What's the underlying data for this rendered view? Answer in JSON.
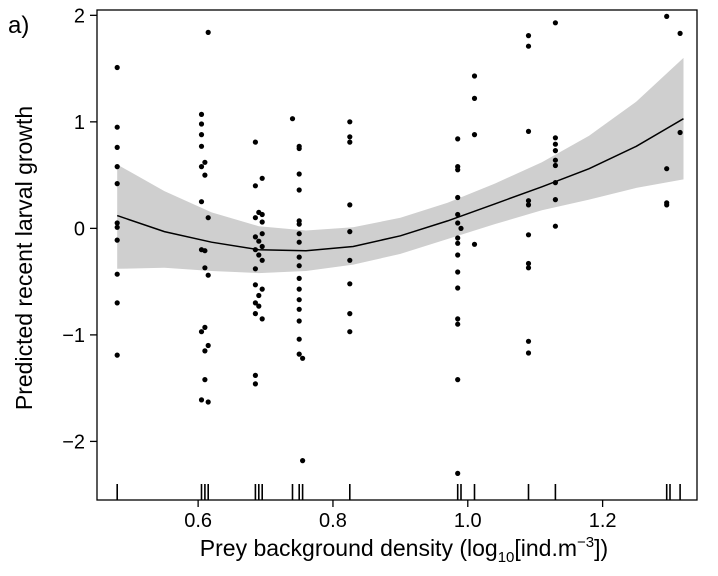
{
  "chart_data": {
    "type": "scatter",
    "panel_label": "a)",
    "xlabel_prefix": "Prey background density (log",
    "xlabel_sub": "10",
    "xlabel_mid": "[ind.m",
    "xlabel_sup": "−3",
    "xlabel_suffix": "])",
    "ylabel": "Predicted recent larval growth",
    "xlim": [
      0.45,
      1.34
    ],
    "ylim": [
      -2.55,
      2.05
    ],
    "x_ticks": [
      0.6,
      0.8,
      1.0,
      1.2
    ],
    "x_tick_labels": [
      "0.6",
      "0.8",
      "1.0",
      "1.2"
    ],
    "y_ticks": [
      -2,
      -1,
      0,
      1,
      2
    ],
    "y_tick_labels": [
      "−2",
      "−1",
      "0",
      "1",
      "2"
    ],
    "grid": false,
    "rug_x": [
      0.48,
      0.605,
      0.61,
      0.615,
      0.685,
      0.69,
      0.695,
      0.74,
      0.75,
      0.755,
      0.825,
      0.985,
      0.99,
      1.01,
      1.09,
      1.13,
      1.295,
      1.3,
      1.315
    ],
    "fit_line": {
      "x": [
        0.48,
        0.55,
        0.62,
        0.69,
        0.76,
        0.83,
        0.9,
        0.97,
        1.04,
        1.11,
        1.18,
        1.25,
        1.32
      ],
      "y": [
        0.12,
        -0.03,
        -0.13,
        -0.2,
        -0.21,
        -0.17,
        -0.07,
        0.07,
        0.23,
        0.39,
        0.56,
        0.77,
        1.03
      ]
    },
    "confidence_band": {
      "x": [
        0.48,
        0.55,
        0.62,
        0.69,
        0.76,
        0.83,
        0.9,
        0.97,
        1.04,
        1.11,
        1.18,
        1.25,
        1.32
      ],
      "upper": [
        0.6,
        0.35,
        0.15,
        0.02,
        -0.02,
        0.01,
        0.1,
        0.24,
        0.42,
        0.62,
        0.87,
        1.19,
        1.6
      ],
      "lower": [
        -0.38,
        -0.37,
        -0.4,
        -0.42,
        -0.4,
        -0.34,
        -0.24,
        -0.1,
        0.04,
        0.17,
        0.27,
        0.38,
        0.46
      ]
    },
    "points": [
      {
        "x": 0.48,
        "y": 1.51
      },
      {
        "x": 0.48,
        "y": 0.95
      },
      {
        "x": 0.48,
        "y": 0.76
      },
      {
        "x": 0.48,
        "y": 0.58
      },
      {
        "x": 0.48,
        "y": 0.42
      },
      {
        "x": 0.48,
        "y": 0.05
      },
      {
        "x": 0.48,
        "y": 0.01
      },
      {
        "x": 0.48,
        "y": -0.11
      },
      {
        "x": 0.48,
        "y": -0.43
      },
      {
        "x": 0.48,
        "y": -0.7
      },
      {
        "x": 0.48,
        "y": -1.19
      },
      {
        "x": 0.605,
        "y": 1.07
      },
      {
        "x": 0.605,
        "y": 0.98
      },
      {
        "x": 0.605,
        "y": 0.88
      },
      {
        "x": 0.605,
        "y": 0.77
      },
      {
        "x": 0.605,
        "y": 0.58
      },
      {
        "x": 0.605,
        "y": 0.25
      },
      {
        "x": 0.605,
        "y": -0.2
      },
      {
        "x": 0.605,
        "y": -0.97
      },
      {
        "x": 0.605,
        "y": -1.61
      },
      {
        "x": 0.61,
        "y": 0.62
      },
      {
        "x": 0.61,
        "y": 0.5
      },
      {
        "x": 0.61,
        "y": -0.21
      },
      {
        "x": 0.61,
        "y": -0.37
      },
      {
        "x": 0.61,
        "y": -0.93
      },
      {
        "x": 0.61,
        "y": -1.15
      },
      {
        "x": 0.61,
        "y": -1.42
      },
      {
        "x": 0.615,
        "y": 1.84
      },
      {
        "x": 0.615,
        "y": 0.1
      },
      {
        "x": 0.615,
        "y": -0.44
      },
      {
        "x": 0.615,
        "y": -1.1
      },
      {
        "x": 0.615,
        "y": -1.63
      },
      {
        "x": 0.685,
        "y": 0.81
      },
      {
        "x": 0.685,
        "y": 0.4
      },
      {
        "x": 0.685,
        "y": 0.1
      },
      {
        "x": 0.685,
        "y": -0.08
      },
      {
        "x": 0.685,
        "y": -0.2
      },
      {
        "x": 0.685,
        "y": -0.38
      },
      {
        "x": 0.685,
        "y": -0.53
      },
      {
        "x": 0.685,
        "y": -0.7
      },
      {
        "x": 0.685,
        "y": -0.8
      },
      {
        "x": 0.685,
        "y": -1.38
      },
      {
        "x": 0.685,
        "y": -1.46
      },
      {
        "x": 0.69,
        "y": 0.15
      },
      {
        "x": 0.69,
        "y": -0.12
      },
      {
        "x": 0.69,
        "y": -0.25
      },
      {
        "x": 0.69,
        "y": -0.63
      },
      {
        "x": 0.69,
        "y": -0.73
      },
      {
        "x": 0.695,
        "y": 0.47
      },
      {
        "x": 0.695,
        "y": 0.13
      },
      {
        "x": 0.695,
        "y": 0.06
      },
      {
        "x": 0.695,
        "y": -0.05
      },
      {
        "x": 0.695,
        "y": -0.17
      },
      {
        "x": 0.695,
        "y": -0.3
      },
      {
        "x": 0.695,
        "y": -0.57
      },
      {
        "x": 0.695,
        "y": -0.85
      },
      {
        "x": 0.74,
        "y": 1.03
      },
      {
        "x": 0.75,
        "y": 0.77
      },
      {
        "x": 0.75,
        "y": 0.75
      },
      {
        "x": 0.75,
        "y": 0.51
      },
      {
        "x": 0.75,
        "y": 0.36
      },
      {
        "x": 0.75,
        "y": 0.07
      },
      {
        "x": 0.75,
        "y": 0.04
      },
      {
        "x": 0.75,
        "y": -0.05
      },
      {
        "x": 0.75,
        "y": -0.13
      },
      {
        "x": 0.75,
        "y": -0.27
      },
      {
        "x": 0.75,
        "y": -0.35
      },
      {
        "x": 0.75,
        "y": -0.47
      },
      {
        "x": 0.75,
        "y": -0.57
      },
      {
        "x": 0.75,
        "y": -0.67
      },
      {
        "x": 0.75,
        "y": -0.76
      },
      {
        "x": 0.75,
        "y": -0.87
      },
      {
        "x": 0.75,
        "y": -1.04
      },
      {
        "x": 0.75,
        "y": -1.18
      },
      {
        "x": 0.755,
        "y": -1.22
      },
      {
        "x": 0.755,
        "y": -2.18
      },
      {
        "x": 0.825,
        "y": 1.0
      },
      {
        "x": 0.825,
        "y": 0.86
      },
      {
        "x": 0.825,
        "y": 0.81
      },
      {
        "x": 0.825,
        "y": 0.22
      },
      {
        "x": 0.825,
        "y": -0.03
      },
      {
        "x": 0.825,
        "y": -0.3
      },
      {
        "x": 0.825,
        "y": -0.52
      },
      {
        "x": 0.825,
        "y": -0.8
      },
      {
        "x": 0.825,
        "y": -0.97
      },
      {
        "x": 0.985,
        "y": 0.84
      },
      {
        "x": 0.985,
        "y": 0.58
      },
      {
        "x": 0.985,
        "y": 0.55
      },
      {
        "x": 0.985,
        "y": 0.29
      },
      {
        "x": 0.985,
        "y": 0.13
      },
      {
        "x": 0.985,
        "y": 0.05
      },
      {
        "x": 0.985,
        "y": -0.09
      },
      {
        "x": 0.985,
        "y": -0.14
      },
      {
        "x": 0.985,
        "y": -0.25
      },
      {
        "x": 0.985,
        "y": -0.41
      },
      {
        "x": 0.985,
        "y": -0.56
      },
      {
        "x": 0.985,
        "y": -0.85
      },
      {
        "x": 0.985,
        "y": -0.9
      },
      {
        "x": 0.985,
        "y": -1.42
      },
      {
        "x": 0.985,
        "y": -2.3
      },
      {
        "x": 0.99,
        "y": 0.0
      },
      {
        "x": 1.01,
        "y": 1.43
      },
      {
        "x": 1.01,
        "y": 1.22
      },
      {
        "x": 1.01,
        "y": 0.88
      },
      {
        "x": 1.01,
        "y": -0.15
      },
      {
        "x": 1.09,
        "y": 1.81
      },
      {
        "x": 1.09,
        "y": 1.71
      },
      {
        "x": 1.09,
        "y": 0.91
      },
      {
        "x": 1.09,
        "y": 0.26
      },
      {
        "x": 1.09,
        "y": 0.22
      },
      {
        "x": 1.09,
        "y": -0.06
      },
      {
        "x": 1.09,
        "y": -0.33
      },
      {
        "x": 1.09,
        "y": -0.37
      },
      {
        "x": 1.09,
        "y": -1.06
      },
      {
        "x": 1.09,
        "y": -1.17
      },
      {
        "x": 1.13,
        "y": 1.93
      },
      {
        "x": 1.13,
        "y": 0.85
      },
      {
        "x": 1.13,
        "y": 0.79
      },
      {
        "x": 1.13,
        "y": 0.73
      },
      {
        "x": 1.13,
        "y": 0.64
      },
      {
        "x": 1.13,
        "y": 0.59
      },
      {
        "x": 1.13,
        "y": 0.43
      },
      {
        "x": 1.13,
        "y": 0.27
      },
      {
        "x": 1.13,
        "y": 0.02
      },
      {
        "x": 1.295,
        "y": 1.99
      },
      {
        "x": 1.295,
        "y": 0.56
      },
      {
        "x": 1.295,
        "y": 0.24
      },
      {
        "x": 1.295,
        "y": 0.22
      },
      {
        "x": 1.315,
        "y": 1.83
      },
      {
        "x": 1.315,
        "y": 0.9
      }
    ]
  }
}
